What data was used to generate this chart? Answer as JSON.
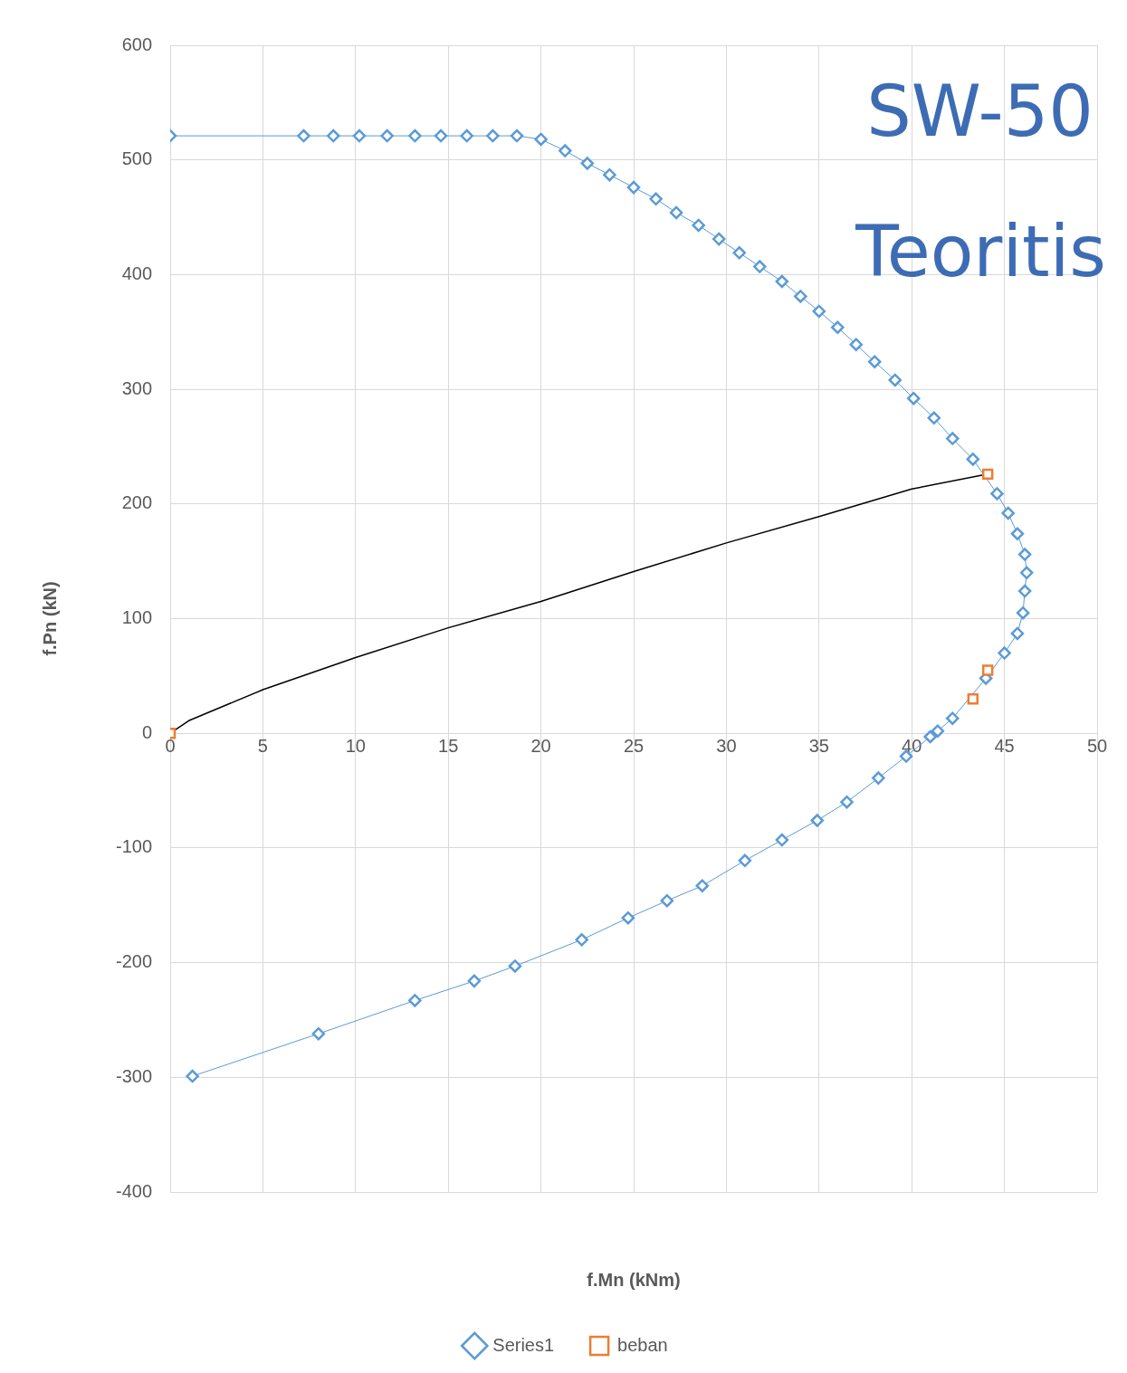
{
  "chart_data": {
    "type": "line",
    "title": "SW-50",
    "subtitle": "Teoritis",
    "xlabel": "f.Mn (kNm)",
    "ylabel": "f.Pn (kN)",
    "xlim": [
      0,
      50
    ],
    "xticks": [
      0,
      5,
      10,
      15,
      20,
      25,
      30,
      35,
      40,
      45,
      50
    ],
    "ylim": [
      -400,
      600
    ],
    "yticks": [
      -400,
      -300,
      -200,
      -100,
      0,
      100,
      200,
      300,
      400,
      500,
      600
    ],
    "grid": true,
    "legend": "bottom",
    "series": [
      {
        "name": "Series1",
        "color": "#5b9bd5",
        "marker": "diamond",
        "x": [
          0,
          7.2,
          8.8,
          10.2,
          11.7,
          13.2,
          14.6,
          16.0,
          17.4,
          18.7,
          20.0,
          21.3,
          22.5,
          23.7,
          25.0,
          26.2,
          27.3,
          28.5,
          29.6,
          30.7,
          31.8,
          33.0,
          34.0,
          35.0,
          36.0,
          37.0,
          38.0,
          39.1,
          40.1,
          41.2,
          42.2,
          43.3,
          44.6,
          45.2,
          45.7,
          46.1,
          46.2,
          46.1,
          46.0,
          45.7,
          45.0,
          44.0,
          42.2,
          41.4,
          41.0,
          39.7,
          38.2,
          36.5,
          34.9,
          33.0,
          31.0,
          28.7,
          26.8,
          24.7,
          22.2,
          18.6,
          16.4,
          13.2,
          8.0,
          1.2
        ],
        "values": [
          521,
          521,
          521,
          521,
          521,
          521,
          521,
          521,
          521,
          521,
          518,
          508,
          497,
          487,
          476,
          466,
          454,
          443,
          431,
          419,
          407,
          394,
          381,
          368,
          354,
          339,
          324,
          308,
          292,
          275,
          257,
          239,
          209,
          192,
          174,
          156,
          140,
          124,
          105,
          87,
          70,
          48,
          13,
          2,
          -3,
          -20,
          -39,
          -60,
          -76,
          -93,
          -111,
          -133,
          -146,
          -161,
          -180,
          -203,
          -216,
          -233,
          -262,
          -299
        ]
      },
      {
        "color": "#000000",
        "marker": "none",
        "x": [
          0,
          1,
          5,
          10,
          15,
          20,
          25,
          30,
          35,
          40,
          44.1
        ],
        "values": [
          0,
          11,
          38,
          66,
          92,
          115,
          141,
          166,
          189,
          213,
          226
        ]
      },
      {
        "name": "beban",
        "type": "scatter",
        "color": "#ed7d31",
        "marker": "square",
        "x": [
          0,
          44.1,
          44.1,
          43.3
        ],
        "values": [
          0,
          226,
          55,
          30
        ]
      }
    ]
  }
}
